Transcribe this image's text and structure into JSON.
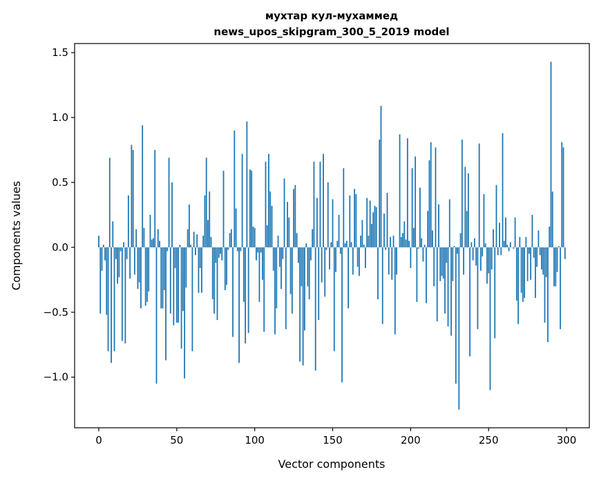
{
  "chart_data": {
    "type": "bar",
    "title": [
      "мухтар кул-мухаммед",
      "news_upos_skipgram_300_5_2019 model"
    ],
    "xlabel": "Vector components",
    "ylabel": "Components values",
    "xlim": [
      -15.5,
      314.6
    ],
    "ylim": [
      -1.39,
      1.57
    ],
    "xticks": [
      0,
      50,
      100,
      150,
      200,
      250,
      300
    ],
    "xtick_labels": [
      "0",
      "50",
      "100",
      "150",
      "200",
      "250",
      "300"
    ],
    "yticks": [
      -1.0,
      -0.5,
      0.0,
      0.5,
      1.0,
      1.5
    ],
    "ytick_labels": [
      "−1.0",
      "−0.5",
      "0.0",
      "0.5",
      "1.0",
      "1.5"
    ],
    "grid": false,
    "bar_color": "#1f77b4",
    "values": [
      0.09,
      -0.51,
      -0.18,
      0.02,
      -0.1,
      -0.52,
      -0.8,
      0.69,
      -0.89,
      0.2,
      -0.8,
      -0.09,
      -0.28,
      -0.23,
      -0.03,
      -0.72,
      0.04,
      -0.74,
      -0.09,
      0.4,
      -0.24,
      0.79,
      0.75,
      -0.21,
      0.14,
      -0.32,
      -0.27,
      -0.47,
      0.94,
      0.15,
      -0.45,
      -0.42,
      -0.34,
      0.25,
      0.06,
      0.07,
      0.75,
      -1.05,
      0.14,
      0.05,
      -0.47,
      -0.47,
      -0.33,
      -0.87,
      -0.03,
      0.69,
      -0.51,
      0.5,
      -0.6,
      -0.16,
      -0.58,
      -0.58,
      0.02,
      -0.78,
      -0.49,
      -1.01,
      -0.31,
      0.14,
      0.33,
      0.02,
      -0.8,
      0.12,
      -0.06,
      0.1,
      -0.35,
      -0.16,
      -0.35,
      0.09,
      0.4,
      0.69,
      0.21,
      0.43,
      0.08,
      -0.4,
      -0.51,
      -0.12,
      -0.56,
      -0.08,
      -0.05,
      -0.1,
      0.59,
      -0.33,
      -0.29,
      -0.02,
      0.11,
      0.14,
      -0.69,
      0.9,
      0.3,
      -0.03,
      -0.89,
      -0.03,
      0.72,
      -0.42,
      -0.74,
      0.97,
      -0.66,
      0.6,
      0.59,
      0.16,
      0.15,
      -0.1,
      -0.04,
      -0.42,
      -0.04,
      -0.25,
      -0.65,
      0.66,
      0.17,
      0.72,
      0.43,
      0.32,
      -0.18,
      -0.67,
      -0.47,
      0.09,
      -0.15,
      -0.32,
      -0.09,
      0.53,
      -0.63,
      0.35,
      0.23,
      -0.36,
      -0.51,
      0.45,
      0.48,
      0.11,
      -0.12,
      -0.88,
      -0.3,
      -0.91,
      -0.64,
      0.03,
      -0.3,
      -0.4,
      -0.1,
      0.14,
      0.66,
      -0.95,
      0.38,
      -0.56,
      0.66,
      -0.27,
      0.72,
      -0.38,
      -0.02,
      0.5,
      -0.17,
      0.04,
      0.37,
      -0.8,
      -0.19,
      0.05,
      0.25,
      -0.05,
      -1.04,
      0.61,
      0.03,
      0.05,
      -0.47,
      0.4,
      0.04,
      -0.21,
      0.45,
      0.41,
      -0.15,
      -0.22,
      0.09,
      0.21,
      0.02,
      -0.16,
      0.38,
      0.09,
      0.36,
      0.18,
      0.27,
      0.32,
      0.31,
      -0.4,
      0.83,
      1.09,
      -0.59,
      0.26,
      -0.02,
      0.42,
      -0.21,
      0.08,
      -0.25,
      0.09,
      -0.67,
      -0.21,
      0.0,
      0.87,
      0.08,
      0.11,
      0.2,
      0.06,
      0.84,
      0.05,
      -0.16,
      0.61,
      0.15,
      0.7,
      -0.42,
      -0.01,
      0.46,
      0.07,
      -0.11,
      0.02,
      -0.43,
      0.28,
      0.67,
      0.81,
      0.13,
      -0.3,
      0.77,
      -0.57,
      0.33,
      -0.26,
      -0.22,
      -0.24,
      -0.51,
      -0.12,
      -0.61,
      0.37,
      -0.68,
      -0.26,
      0.01,
      -1.05,
      -0.05,
      -1.25,
      0.11,
      0.83,
      -0.21,
      0.62,
      0.28,
      0.57,
      -0.84,
      0.04,
      -0.1,
      0.07,
      -0.14,
      -0.63,
      0.8,
      -0.18,
      -0.07,
      0.41,
      0.03,
      -0.28,
      -0.2,
      -1.1,
      -0.17,
      0.14,
      -0.7,
      0.48,
      -0.06,
      0.19,
      -0.06,
      0.88,
      0.05,
      0.23,
      0.02,
      -0.03,
      0.04,
      0.0,
      -0.01,
      0.23,
      -0.41,
      -0.59,
      0.08,
      -0.35,
      -0.42,
      -0.39,
      0.08,
      -0.26,
      -0.05,
      -0.25,
      0.25,
      -0.08,
      -0.39,
      -0.15,
      0.13,
      -0.06,
      -0.17,
      -0.21,
      -0.58,
      -0.23,
      -0.73,
      0.16,
      1.43,
      0.43,
      -0.3,
      -0.3,
      -0.19,
      0.01,
      -0.63,
      0.81,
      0.77,
      -0.09
    ]
  }
}
